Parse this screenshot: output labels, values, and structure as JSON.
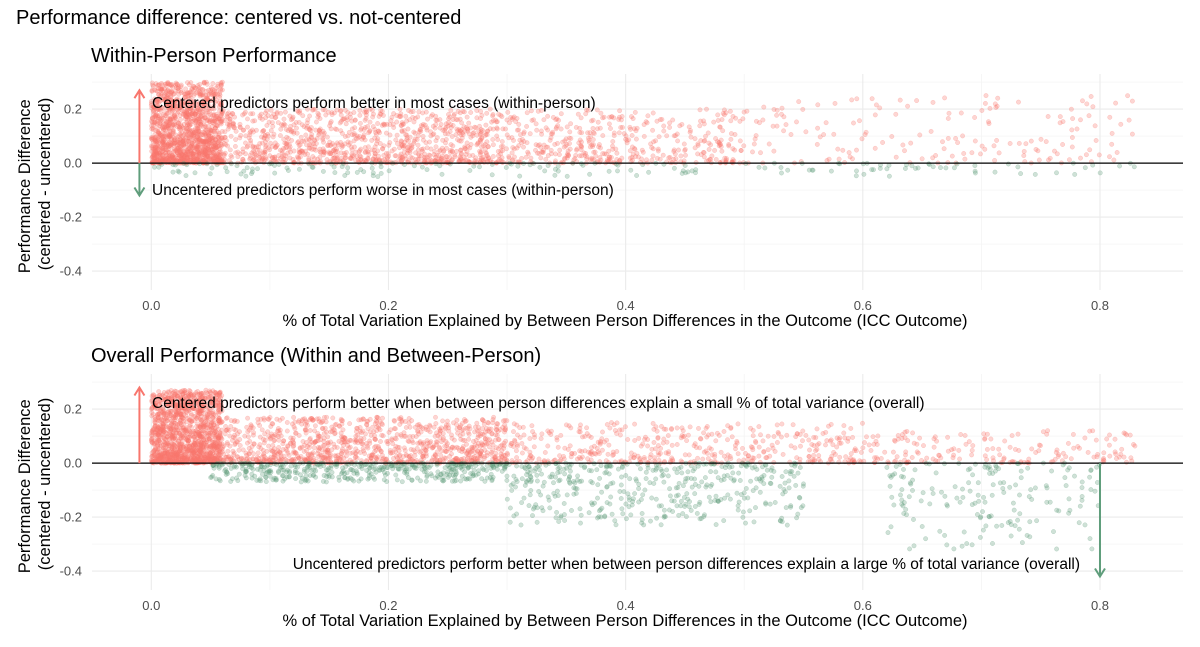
{
  "title": "Performance difference: centered vs. not-centered",
  "colors": {
    "positive": "#F8766D",
    "negative": "#5F9D7B"
  },
  "chart_data": [
    {
      "type": "scatter",
      "title": "Within-Person Performance",
      "xlabel": "% of Total Variation Explained by Between Person Differences in the Outcome (ICC Outcome)",
      "ylabel": [
        "Performance Difference",
        "(centered - uncentered)"
      ],
      "xlim": [
        -0.05,
        0.87
      ],
      "ylim": [
        -0.47,
        0.33
      ],
      "xticks": [
        0.0,
        0.2,
        0.4,
        0.6,
        0.8
      ],
      "xtick_labels": [
        "0.0",
        "0.2",
        "0.4",
        "0.6",
        "0.8"
      ],
      "yticks": [
        0.2,
        0.0,
        -0.2,
        -0.4
      ],
      "ytick_labels": [
        "0.2",
        "0.0",
        "-0.2",
        "-0.4"
      ],
      "grid": true,
      "reference_line_y": 0.0,
      "point_clusters": [
        {
          "series": "positive",
          "x_range": [
            0.0,
            0.06
          ],
          "y_range": [
            0.0,
            0.3
          ],
          "density": "very high"
        },
        {
          "series": "positive",
          "x_range": [
            0.06,
            0.3
          ],
          "y_range": [
            0.0,
            0.2
          ],
          "density": "high"
        },
        {
          "series": "positive",
          "x_range": [
            0.3,
            0.5
          ],
          "y_range": [
            0.0,
            0.2
          ],
          "density": "medium"
        },
        {
          "series": "positive",
          "x_range": [
            0.5,
            0.83
          ],
          "y_range": [
            0.0,
            0.25
          ],
          "density": "low"
        },
        {
          "series": "negative",
          "x_range": [
            0.0,
            0.83
          ],
          "y_range": [
            -0.05,
            0.0
          ],
          "density": "low"
        }
      ],
      "annotations": [
        {
          "text": "Centered predictors perform better in most cases (within-person)",
          "arrow": {
            "x": -0.01,
            "y_from": 0.0,
            "y_to": 0.27,
            "series": "positive"
          }
        },
        {
          "text": "Uncentered predictors perform worse in most cases (within-person)",
          "arrow": {
            "x": -0.01,
            "y_from": 0.0,
            "y_to": -0.12,
            "series": "negative"
          }
        }
      ]
    },
    {
      "type": "scatter",
      "title": "Overall Performance (Within and Between-Person)",
      "xlabel": "% of Total Variation Explained by Between Person Differences in the Outcome (ICC Outcome)",
      "ylabel": [
        "Performance Difference",
        "(centered - uncentered)"
      ],
      "xlim": [
        -0.05,
        0.87
      ],
      "ylim": [
        -0.47,
        0.33
      ],
      "xticks": [
        0.0,
        0.2,
        0.4,
        0.6,
        0.8
      ],
      "xtick_labels": [
        "0.0",
        "0.2",
        "0.4",
        "0.6",
        "0.8"
      ],
      "yticks": [
        0.2,
        0.0,
        -0.2,
        -0.4
      ],
      "ytick_labels": [
        "0.2",
        "0.0",
        "-0.2",
        "-0.4"
      ],
      "grid": true,
      "reference_line_y": 0.0,
      "point_clusters": [
        {
          "series": "positive",
          "x_range": [
            0.0,
            0.06
          ],
          "y_range": [
            0.0,
            0.27
          ],
          "density": "very high"
        },
        {
          "series": "positive",
          "x_range": [
            0.06,
            0.3
          ],
          "y_range": [
            0.0,
            0.17
          ],
          "density": "high"
        },
        {
          "series": "positive",
          "x_range": [
            0.3,
            0.6
          ],
          "y_range": [
            0.0,
            0.15
          ],
          "density": "medium"
        },
        {
          "series": "positive",
          "x_range": [
            0.6,
            0.83
          ],
          "y_range": [
            0.0,
            0.12
          ],
          "density": "low"
        },
        {
          "series": "negative",
          "x_range": [
            0.05,
            0.3
          ],
          "y_range": [
            -0.07,
            0.0
          ],
          "density": "medium"
        },
        {
          "series": "negative",
          "x_range": [
            0.3,
            0.55
          ],
          "y_range": [
            -0.23,
            0.0
          ],
          "density": "medium"
        },
        {
          "series": "negative",
          "x_range": [
            0.62,
            0.8
          ],
          "y_range": [
            -0.32,
            0.0
          ],
          "density": "low"
        }
      ],
      "annotations": [
        {
          "text": "Centered predictors perform better when between person differences explain a small % of total variance (overall)",
          "arrow": {
            "x": -0.01,
            "y_from": 0.0,
            "y_to": 0.28,
            "series": "positive"
          }
        },
        {
          "text": "Uncentered predictors perform better when between person differences explain a large % of total variance (overall)",
          "arrow": {
            "x": 0.8,
            "y_from": 0.0,
            "y_to": -0.42,
            "series": "negative"
          }
        }
      ]
    }
  ]
}
